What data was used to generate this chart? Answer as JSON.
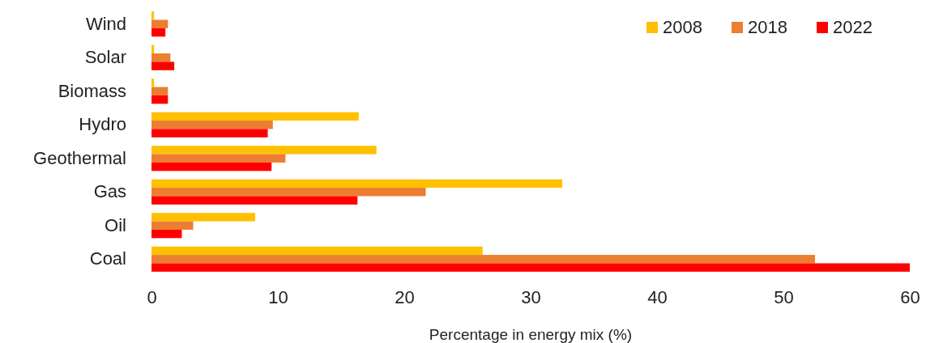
{
  "chart_data": {
    "type": "bar",
    "orientation": "horizontal",
    "xlabel": "Percentage in energy mix (%)",
    "categories": [
      "Wind",
      "Solar",
      "Biomass",
      "Hydro",
      "Geothermal",
      "Gas",
      "Oil",
      "Coal"
    ],
    "series": [
      {
        "name": "2008",
        "color": "#ffc000",
        "values": [
          0.2,
          0.2,
          0.2,
          16.4,
          17.8,
          32.5,
          8.2,
          26.2
        ]
      },
      {
        "name": "2018",
        "color": "#ed7d31",
        "values": [
          1.3,
          1.5,
          1.3,
          9.6,
          10.6,
          21.7,
          3.3,
          52.5
        ]
      },
      {
        "name": "2022",
        "color": "#ff0000",
        "values": [
          1.1,
          1.8,
          1.3,
          9.2,
          9.5,
          16.3,
          2.4,
          60
        ]
      }
    ],
    "xlim": [
      0,
      60
    ],
    "xticks": [
      0,
      10,
      20,
      30,
      40,
      50,
      60
    ],
    "legend": "top right",
    "grid": false
  }
}
